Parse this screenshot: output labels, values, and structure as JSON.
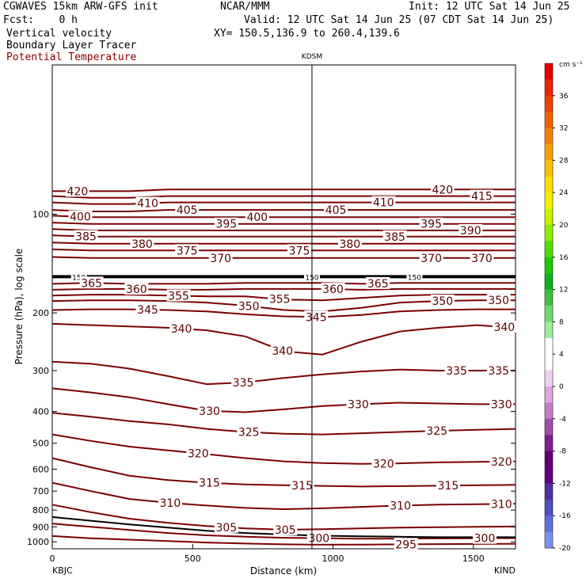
{
  "header": {
    "line1_left": "CGWAVES 15km ARW-GFS init",
    "line1_mid": "NCAR/MMM",
    "line1_right": "Init: 12 UTC Sat 14 Jun 25",
    "fcst": "Fcst:    0 h",
    "valid": "Valid: 12 UTC Sat 14 Jun 25 (07 CDT Sat 14 Jun 25)",
    "field1": "Vertical velocity",
    "field2": "Boundary Layer Tracer",
    "field3": "Potential Temperature",
    "xy": "XY= 150.5,136.9 to 260.4,139.6"
  },
  "colors": {
    "contour": "#7a0000",
    "tracer": "#000000"
  },
  "chart_data": {
    "type": "contour",
    "xlabel": "Distance (km)",
    "ylabel": "Pressure (hPa), log scale",
    "x_ticks": [
      "0",
      "500",
      "1000",
      "1500"
    ],
    "y_ticks": [
      "100",
      "200",
      "300",
      "400",
      "500",
      "600",
      "700",
      "800",
      "900",
      "1000"
    ],
    "xlim": [
      0,
      1650
    ],
    "ylim": [
      1050,
      35
    ],
    "y_scale": "log",
    "station_marker": "KDSM",
    "station_marker_x": 925,
    "left_station": "KBJC",
    "right_station": "KIND",
    "tracer_label": "150",
    "tracer_pressure": 155,
    "colorbar": {
      "unit": "cm s⁻¹",
      "labels": [
        "36",
        "32",
        "28",
        "24",
        "20",
        "16",
        "12",
        "8",
        "4",
        "0",
        "-4",
        "-8",
        "-12",
        "-16",
        "-20"
      ],
      "colors": [
        "#e50000",
        "#ee2200",
        "#f04000",
        "#f26000",
        "#f48000",
        "#f6a000",
        "#f8c000",
        "#fae000",
        "#f0f000",
        "#c8f000",
        "#90ea00",
        "#50dc00",
        "#20c800",
        "#10b020",
        "#40c040",
        "#70d870",
        "#a0eca0",
        "#ffffff",
        "#ffffff",
        "#f0d0f0",
        "#dca8dc",
        "#c080c0",
        "#a050a8",
        "#802090",
        "#600070",
        "#600080",
        "#5030a0",
        "#5050c0",
        "#6070d8",
        "#8090f0"
      ]
    },
    "contours": [
      {
        "theta": "420",
        "p": [
          85,
          85,
          85,
          84,
          84,
          84,
          84,
          84,
          84,
          84,
          84,
          84,
          84
        ],
        "labels": [
          [
            90,
            "420"
          ],
          [
            1390,
            "420"
          ]
        ]
      },
      {
        "theta": "415",
        "p": [
          88,
          89,
          89,
          88,
          88,
          88,
          88,
          88,
          88,
          88,
          88,
          88,
          88
        ],
        "labels": [
          [
            1530,
            "415"
          ]
        ]
      },
      {
        "theta": "410",
        "p": [
          92,
          93,
          93,
          92,
          92,
          92,
          92,
          92,
          92,
          92,
          92,
          92,
          92
        ],
        "labels": [
          [
            340,
            "410"
          ],
          [
            1180,
            "410"
          ]
        ]
      },
      {
        "theta": "405",
        "p": [
          97,
          98,
          98,
          97,
          97,
          97,
          97,
          97,
          97,
          97,
          97,
          97,
          97
        ],
        "labels": [
          [
            480,
            "405"
          ],
          [
            1010,
            "405"
          ]
        ]
      },
      {
        "theta": "400",
        "p": [
          101,
          102,
          102,
          102,
          102,
          102,
          102,
          102,
          102,
          102,
          102,
          102,
          102
        ],
        "labels": [
          [
            100,
            "400"
          ],
          [
            730,
            "400"
          ]
        ]
      },
      {
        "theta": "395",
        "p": [
          106,
          107,
          107,
          107,
          107,
          107,
          107,
          107,
          107,
          107,
          107,
          107,
          107
        ],
        "labels": [
          [
            620,
            "395"
          ],
          [
            1350,
            "395"
          ]
        ]
      },
      {
        "theta": "390",
        "p": [
          111,
          112,
          112,
          112,
          112,
          112,
          112,
          112,
          112,
          112,
          112,
          112,
          112
        ],
        "labels": [
          [
            1490,
            "390"
          ]
        ]
      },
      {
        "theta": "385",
        "p": [
          116,
          117,
          117,
          117,
          117,
          117,
          117,
          117,
          117,
          117,
          117,
          117,
          117
        ],
        "labels": [
          [
            120,
            "385"
          ],
          [
            1220,
            "385"
          ]
        ]
      },
      {
        "theta": "380",
        "p": [
          122,
          123,
          123,
          123,
          123,
          123,
          123,
          123,
          123,
          123,
          123,
          123,
          123
        ],
        "labels": [
          [
            320,
            "380"
          ],
          [
            1060,
            "380"
          ]
        ]
      },
      {
        "theta": "375",
        "p": [
          128,
          129,
          129,
          129,
          129,
          129,
          129,
          129,
          129,
          129,
          129,
          129,
          129
        ],
        "labels": [
          [
            480,
            "375"
          ],
          [
            880,
            "375"
          ]
        ]
      },
      {
        "theta": "370",
        "p": [
          135,
          136,
          136,
          136,
          136,
          136,
          136,
          136,
          136,
          136,
          136,
          136,
          136
        ],
        "labels": [
          [
            600,
            "370"
          ],
          [
            1350,
            "370"
          ],
          [
            1530,
            "370"
          ]
        ]
      },
      {
        "theta": "365",
        "p": [
          163,
          162,
          163,
          163,
          163,
          162,
          162,
          162,
          163,
          162,
          162,
          162,
          162
        ],
        "labels": [
          [
            140,
            "365"
          ],
          [
            1160,
            "365"
          ]
        ]
      },
      {
        "theta": "360",
        "p": [
          170,
          169,
          169,
          170,
          170,
          169,
          169,
          169,
          170,
          169,
          169,
          169,
          169
        ],
        "labels": [
          [
            300,
            "360"
          ],
          [
            1000,
            "360"
          ]
        ]
      },
      {
        "theta": "355",
        "p": [
          177,
          176,
          176,
          177,
          178,
          178,
          182,
          183,
          180,
          177,
          176,
          176,
          176
        ],
        "labels": [
          [
            450,
            "355"
          ],
          [
            810,
            "355"
          ]
        ]
      },
      {
        "theta": "350",
        "p": [
          184,
          183,
          183,
          184,
          186,
          190,
          196,
          198,
          193,
          186,
          184,
          183,
          183
        ],
        "labels": [
          [
            700,
            "350"
          ],
          [
            1390,
            "350"
          ],
          [
            1590,
            "350"
          ]
        ]
      },
      {
        "theta": "345",
        "p": [
          196,
          195,
          195,
          196,
          198,
          202,
          205,
          206,
          203,
          198,
          196,
          195,
          195
        ],
        "labels": [
          [
            340,
            "345"
          ],
          [
            940,
            "345"
          ]
        ]
      },
      {
        "theta": "340",
        "p": [
          216,
          218,
          220,
          222,
          226,
          236,
          262,
          268,
          245,
          228,
          222,
          218,
          222
        ],
        "labels": [
          [
            460,
            "340"
          ],
          [
            820,
            "340"
          ],
          [
            1610,
            "340"
          ]
        ]
      },
      {
        "theta": "335",
        "p": [
          282,
          286,
          296,
          312,
          330,
          326,
          316,
          308,
          302,
          298,
          300,
          300,
          300
        ],
        "labels": [
          [
            680,
            "335"
          ],
          [
            1440,
            "335"
          ],
          [
            1590,
            "335"
          ]
        ]
      },
      {
        "theta": "330",
        "p": [
          340,
          350,
          362,
          380,
          398,
          402,
          394,
          385,
          380,
          376,
          378,
          380,
          380
        ],
        "labels": [
          [
            560,
            "330"
          ],
          [
            1090,
            "330"
          ],
          [
            1600,
            "330"
          ]
        ]
      },
      {
        "theta": "325",
        "p": [
          404,
          415,
          428,
          438,
          452,
          462,
          468,
          470,
          466,
          462,
          458,
          455,
          452
        ],
        "labels": [
          [
            700,
            "325"
          ],
          [
            1370,
            "325"
          ]
        ]
      },
      {
        "theta": "320",
        "p": [
          470,
          492,
          512,
          526,
          540,
          555,
          568,
          575,
          578,
          576,
          572,
          570,
          568
        ],
        "labels": [
          [
            520,
            "320"
          ],
          [
            1180,
            "320"
          ],
          [
            1600,
            "320"
          ]
        ]
      },
      {
        "theta": "315",
        "p": [
          555,
          592,
          628,
          648,
          660,
          668,
          672,
          675,
          678,
          676,
          674,
          672,
          670
        ],
        "labels": [
          [
            560,
            "315"
          ],
          [
            890,
            "315"
          ],
          [
            1410,
            "315"
          ]
        ]
      },
      {
        "theta": "310",
        "p": [
          660,
          700,
          740,
          760,
          775,
          788,
          795,
          790,
          782,
          775,
          770,
          768,
          765
        ],
        "labels": [
          [
            420,
            "310"
          ],
          [
            1240,
            "310"
          ],
          [
            1600,
            "310"
          ]
        ]
      },
      {
        "theta": "305",
        "p": [
          770,
          812,
          850,
          875,
          895,
          910,
          918,
          915,
          910,
          905,
          902,
          900,
          898
        ],
        "labels": [
          [
            620,
            "305"
          ],
          [
            830,
            "305"
          ]
        ]
      },
      {
        "theta": "300",
        "p": [
          880,
          900,
          920,
          940,
          955,
          965,
          972,
          975,
          978,
          978,
          976,
          975,
          974
        ],
        "labels": [
          [
            950,
            "300"
          ],
          [
            1540,
            "300"
          ]
        ]
      },
      {
        "theta": "295",
        "p": [
          960,
          975,
          985,
          995,
          1005,
          1012,
          1018,
          1020,
          1020,
          1018,
          1016,
          1015,
          1014
        ],
        "labels": [
          [
            1260,
            "295"
          ]
        ]
      }
    ],
    "terrain_p": [
      840,
      862,
      885,
      905,
      925,
      940,
      950,
      958,
      962,
      965,
      968,
      968,
      968
    ]
  }
}
